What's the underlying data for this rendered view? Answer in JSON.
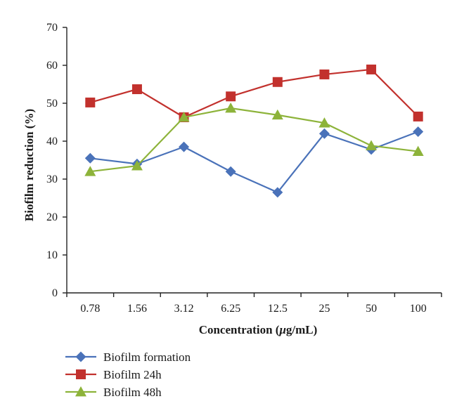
{
  "chart_data": {
    "type": "line",
    "categories": [
      "0.78",
      "1.56",
      "3.12",
      "6.25",
      "12.5",
      "25",
      "50",
      "100"
    ],
    "xlabel_prefix": "Concentration (",
    "xlabel_unit_symbol": "μ",
    "xlabel_suffix": "g/mL)",
    "ylabel": "Biofilm reduction (%)",
    "ylim": [
      0,
      70
    ],
    "yticks": [
      "0",
      "10",
      "20",
      "30",
      "40",
      "50",
      "60",
      "70"
    ],
    "grid": false,
    "legend_position": "bottom-left",
    "series": [
      {
        "name": "Biofilm formation",
        "marker": "diamond",
        "color": "#4a72b9",
        "values": [
          35.5,
          34.0,
          38.5,
          32.0,
          26.5,
          42.0,
          37.8,
          42.5
        ]
      },
      {
        "name": "Biofilm 24h",
        "marker": "square",
        "color": "#c2312d",
        "values": [
          50.2,
          53.7,
          46.3,
          51.8,
          55.6,
          57.6,
          58.9,
          46.5
        ]
      },
      {
        "name": "Biofilm 48h",
        "marker": "triangle",
        "color": "#8db33a",
        "values": [
          32.0,
          33.5,
          46.3,
          48.7,
          46.9,
          44.8,
          38.8,
          37.3
        ]
      }
    ]
  }
}
